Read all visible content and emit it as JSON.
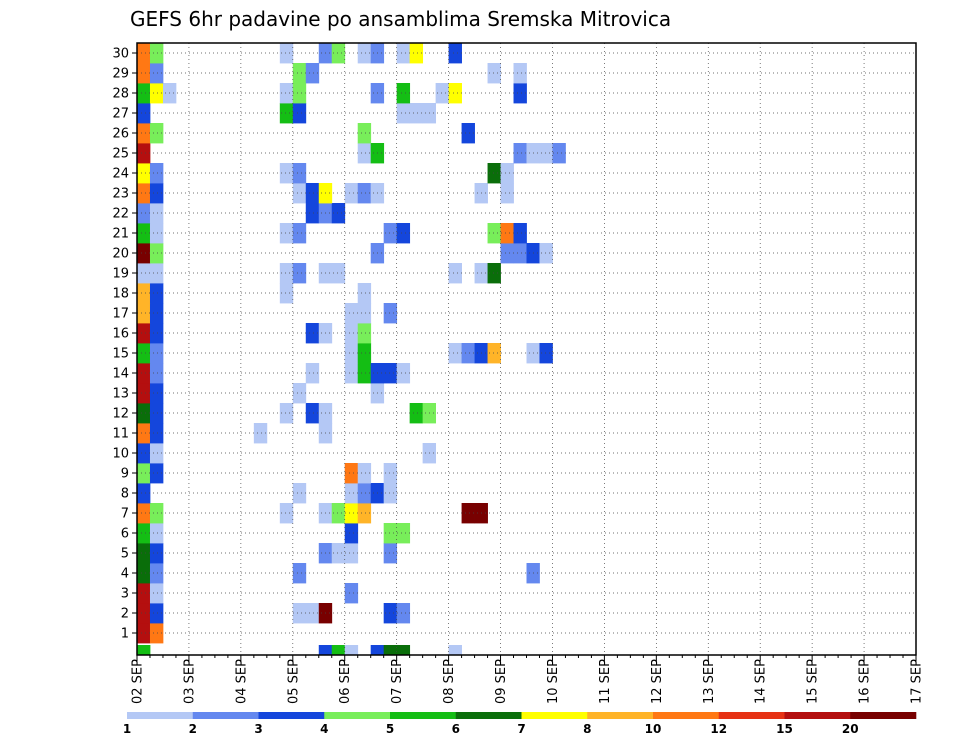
{
  "chart_data": {
    "type": "heatmap",
    "title": "GEFS 6hr padavine po ansamblima Sremska Mitrovica",
    "xlabel": "",
    "ylabel": "",
    "x_ticks": [
      "02 SEP",
      "03 SEP",
      "04 SEP",
      "05 SEP",
      "06 SEP",
      "07 SEP",
      "08 SEP",
      "09 SEP",
      "10 SEP",
      "11 SEP",
      "12 SEP",
      "13 SEP",
      "14 SEP",
      "15 SEP",
      "16 SEP",
      "17 SEP"
    ],
    "y_ticks": [
      "1",
      "2",
      "3",
      "4",
      "5",
      "6",
      "7",
      "8",
      "9",
      "10",
      "11",
      "12",
      "13",
      "14",
      "15",
      "16",
      "17",
      "18",
      "19",
      "20",
      "21",
      "22",
      "23",
      "24",
      "25",
      "26",
      "27",
      "28",
      "29",
      "30"
    ],
    "xlim": [
      "02 SEP 00Z",
      "17 SEP 00Z"
    ],
    "ylim": [
      0,
      30
    ],
    "x_step_hours": 6,
    "colorbar": {
      "labels": [
        "1",
        "2",
        "3",
        "4",
        "5",
        "6",
        "7",
        "8",
        "10",
        "12",
        "15",
        "20"
      ],
      "colors": [
        "#b4c8f5",
        "#6488ef",
        "#1446dc",
        "#78ee5a",
        "#14be14",
        "#0a6e0a",
        "#ffff00",
        "#ffb428",
        "#ff7814",
        "#e63214",
        "#b40f0f",
        "#780000"
      ]
    },
    "cells_format": "member, step index (6h steps from 02 SEP 00Z), color class 1-12",
    "cells": [
      [
        0,
        0,
        11
      ],
      [
        0,
        1,
        9
      ],
      [
        1,
        0,
        11
      ],
      [
        1,
        1,
        3
      ],
      [
        1,
        12,
        1
      ],
      [
        1,
        13,
        1
      ],
      [
        1,
        14,
        12
      ],
      [
        1,
        19,
        3
      ],
      [
        1,
        20,
        2
      ],
      [
        2,
        0,
        11
      ],
      [
        2,
        1,
        1
      ],
      [
        2,
        16,
        2
      ],
      [
        3,
        0,
        6
      ],
      [
        3,
        1,
        2
      ],
      [
        3,
        12,
        2
      ],
      [
        3,
        30,
        2
      ],
      [
        4,
        0,
        6
      ],
      [
        4,
        1,
        3
      ],
      [
        4,
        14,
        2
      ],
      [
        4,
        15,
        1
      ],
      [
        4,
        16,
        1
      ],
      [
        4,
        19,
        2
      ],
      [
        5,
        0,
        5
      ],
      [
        5,
        1,
        1
      ],
      [
        5,
        16,
        3
      ],
      [
        5,
        19,
        4
      ],
      [
        5,
        20,
        4
      ],
      [
        6,
        0,
        9
      ],
      [
        6,
        1,
        4
      ],
      [
        6,
        11,
        1
      ],
      [
        6,
        14,
        1
      ],
      [
        6,
        15,
        4
      ],
      [
        6,
        16,
        7
      ],
      [
        6,
        17,
        8
      ],
      [
        6,
        25,
        12
      ],
      [
        6,
        26,
        12
      ],
      [
        7,
        0,
        3
      ],
      [
        7,
        12,
        1
      ],
      [
        7,
        16,
        1
      ],
      [
        7,
        17,
        2
      ],
      [
        7,
        18,
        3
      ],
      [
        7,
        19,
        1
      ],
      [
        8,
        0,
        4
      ],
      [
        8,
        1,
        3
      ],
      [
        8,
        16,
        9
      ],
      [
        8,
        17,
        1
      ],
      [
        8,
        19,
        1
      ],
      [
        9,
        0,
        3
      ],
      [
        9,
        1,
        1
      ],
      [
        9,
        22,
        1
      ],
      [
        10,
        0,
        9
      ],
      [
        10,
        1,
        3
      ],
      [
        10,
        9,
        1
      ],
      [
        10,
        14,
        1
      ],
      [
        11,
        0,
        6
      ],
      [
        11,
        1,
        3
      ],
      [
        11,
        11,
        1
      ],
      [
        11,
        13,
        3
      ],
      [
        11,
        14,
        1
      ],
      [
        11,
        21,
        5
      ],
      [
        11,
        22,
        4
      ],
      [
        12,
        0,
        11
      ],
      [
        12,
        1,
        3
      ],
      [
        12,
        12,
        1
      ],
      [
        12,
        18,
        1
      ],
      [
        13,
        0,
        11
      ],
      [
        13,
        1,
        2
      ],
      [
        13,
        13,
        1
      ],
      [
        13,
        16,
        1
      ],
      [
        13,
        17,
        5
      ],
      [
        13,
        18,
        3
      ],
      [
        13,
        19,
        3
      ],
      [
        13,
        20,
        1
      ],
      [
        14,
        0,
        5
      ],
      [
        14,
        1,
        2
      ],
      [
        14,
        16,
        1
      ],
      [
        14,
        17,
        5
      ],
      [
        14,
        24,
        1
      ],
      [
        14,
        25,
        2
      ],
      [
        14,
        26,
        3
      ],
      [
        14,
        27,
        8
      ],
      [
        14,
        30,
        1
      ],
      [
        14,
        31,
        3
      ],
      [
        15,
        0,
        11
      ],
      [
        15,
        1,
        3
      ],
      [
        15,
        13,
        3
      ],
      [
        15,
        14,
        1
      ],
      [
        15,
        16,
        1
      ],
      [
        15,
        17,
        4
      ],
      [
        16,
        0,
        8
      ],
      [
        16,
        1,
        3
      ],
      [
        16,
        16,
        1
      ],
      [
        16,
        17,
        1
      ],
      [
        16,
        19,
        2
      ],
      [
        17,
        0,
        8
      ],
      [
        17,
        1,
        3
      ],
      [
        17,
        11,
        1
      ],
      [
        17,
        17,
        1
      ],
      [
        18,
        0,
        1
      ],
      [
        18,
        1,
        1
      ],
      [
        18,
        11,
        1
      ],
      [
        18,
        12,
        2
      ],
      [
        18,
        14,
        1
      ],
      [
        18,
        15,
        1
      ],
      [
        18,
        24,
        1
      ],
      [
        18,
        26,
        1
      ],
      [
        18,
        27,
        6
      ],
      [
        19,
        0,
        12
      ],
      [
        19,
        1,
        4
      ],
      [
        19,
        18,
        2
      ],
      [
        19,
        28,
        2
      ],
      [
        19,
        29,
        2
      ],
      [
        19,
        30,
        3
      ],
      [
        19,
        31,
        1
      ],
      [
        20,
        0,
        5
      ],
      [
        20,
        1,
        1
      ],
      [
        20,
        11,
        1
      ],
      [
        20,
        12,
        2
      ],
      [
        20,
        19,
        2
      ],
      [
        20,
        20,
        3
      ],
      [
        20,
        27,
        4
      ],
      [
        20,
        28,
        9
      ],
      [
        20,
        29,
        3
      ],
      [
        21,
        0,
        2
      ],
      [
        21,
        1,
        1
      ],
      [
        21,
        13,
        3
      ],
      [
        21,
        14,
        2
      ],
      [
        21,
        15,
        3
      ],
      [
        22,
        0,
        9
      ],
      [
        22,
        1,
        3
      ],
      [
        22,
        12,
        1
      ],
      [
        22,
        13,
        3
      ],
      [
        22,
        14,
        7
      ],
      [
        22,
        16,
        1
      ],
      [
        22,
        17,
        2
      ],
      [
        22,
        18,
        1
      ],
      [
        22,
        26,
        1
      ],
      [
        22,
        28,
        1
      ],
      [
        23,
        0,
        7
      ],
      [
        23,
        1,
        2
      ],
      [
        23,
        11,
        1
      ],
      [
        23,
        12,
        2
      ],
      [
        23,
        27,
        6
      ],
      [
        23,
        28,
        1
      ],
      [
        24,
        0,
        11
      ],
      [
        24,
        17,
        1
      ],
      [
        24,
        18,
        5
      ],
      [
        24,
        29,
        2
      ],
      [
        24,
        30,
        1
      ],
      [
        24,
        31,
        1
      ],
      [
        24,
        32,
        2
      ],
      [
        25,
        0,
        9
      ],
      [
        25,
        1,
        4
      ],
      [
        25,
        17,
        4
      ],
      [
        25,
        25,
        3
      ],
      [
        26,
        0,
        3
      ],
      [
        26,
        11,
        5
      ],
      [
        26,
        12,
        3
      ],
      [
        26,
        20,
        1
      ],
      [
        26,
        21,
        1
      ],
      [
        26,
        22,
        1
      ],
      [
        27,
        0,
        5
      ],
      [
        27,
        1,
        7
      ],
      [
        27,
        2,
        1
      ],
      [
        27,
        11,
        1
      ],
      [
        27,
        12,
        4
      ],
      [
        27,
        18,
        2
      ],
      [
        27,
        20,
        5
      ],
      [
        27,
        23,
        1
      ],
      [
        27,
        24,
        7
      ],
      [
        27,
        29,
        3
      ],
      [
        28,
        0,
        9
      ],
      [
        28,
        1,
        2
      ],
      [
        28,
        12,
        4
      ],
      [
        28,
        13,
        2
      ],
      [
        28,
        27,
        1
      ],
      [
        28,
        29,
        1
      ],
      [
        29,
        0,
        9
      ],
      [
        29,
        1,
        4
      ],
      [
        29,
        11,
        1
      ],
      [
        29,
        14,
        2
      ],
      [
        29,
        15,
        4
      ],
      [
        29,
        17,
        1
      ],
      [
        29,
        18,
        2
      ],
      [
        29,
        20,
        1
      ],
      [
        29,
        21,
        7
      ],
      [
        29,
        24,
        3
      ]
    ],
    "bottom_row_cells": [
      [
        0,
        5
      ],
      [
        14,
        3
      ],
      [
        15,
        5
      ],
      [
        16,
        1
      ],
      [
        18,
        3
      ],
      [
        19,
        6
      ],
      [
        20,
        6
      ],
      [
        24,
        1
      ]
    ],
    "grid": true
  }
}
